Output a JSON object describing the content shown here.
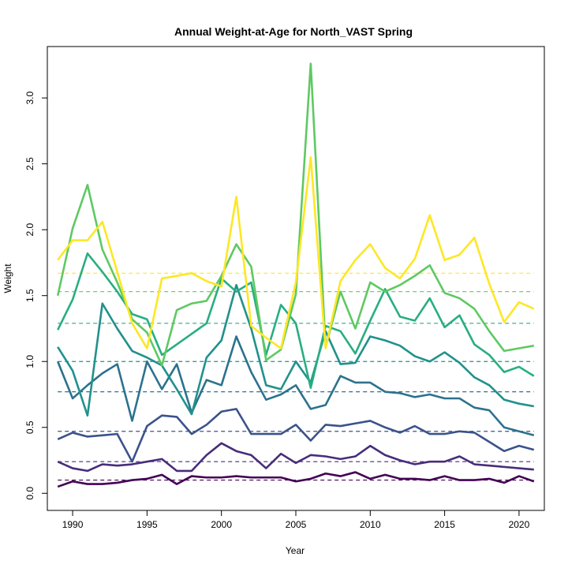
{
  "chart_data": {
    "type": "line",
    "title": "Annual Weight-at-Age for North_VAST Spring",
    "xlabel": "Year",
    "ylabel": "Weight",
    "xlim": [
      1988.3,
      2021.7
    ],
    "ylim": [
      -0.13,
      3.39
    ],
    "x_ticks": [
      1990,
      1995,
      2000,
      2005,
      2010,
      2015,
      2020
    ],
    "y_ticks": [
      0.0,
      0.5,
      1.0,
      1.5,
      2.0,
      2.5,
      3.0
    ],
    "y_tick_labels": [
      "0.0",
      "0.5",
      "1.0",
      "1.5",
      "2.0",
      "2.5",
      "3.0"
    ],
    "grid": false,
    "legend": "none",
    "x": [
      1989,
      1990,
      1991,
      1992,
      1993,
      1994,
      1995,
      1996,
      1997,
      1998,
      1999,
      2000,
      2001,
      2002,
      2003,
      2004,
      2005,
      2006,
      2007,
      2008,
      2009,
      2010,
      2011,
      2012,
      2013,
      2014,
      2015,
      2016,
      2017,
      2018,
      2019,
      2020,
      2021
    ],
    "series": [
      {
        "color": "#440154",
        "mean": 0.1,
        "values": [
          0.05,
          0.09,
          0.07,
          0.07,
          0.08,
          0.1,
          0.11,
          0.14,
          0.07,
          0.13,
          0.12,
          0.12,
          0.13,
          0.12,
          0.12,
          0.12,
          0.09,
          0.11,
          0.15,
          0.13,
          0.16,
          0.11,
          0.14,
          0.11,
          0.11,
          0.1,
          0.13,
          0.1,
          0.1,
          0.11,
          0.08,
          0.13,
          0.09
        ]
      },
      {
        "color": "#472d7b",
        "mean": 0.24,
        "values": [
          0.24,
          0.19,
          0.17,
          0.22,
          0.21,
          0.22,
          0.24,
          0.26,
          0.17,
          0.17,
          0.29,
          0.38,
          0.32,
          0.29,
          0.19,
          0.3,
          0.23,
          0.29,
          0.28,
          0.26,
          0.28,
          0.36,
          0.29,
          0.25,
          0.22,
          0.24,
          0.24,
          0.28,
          0.22,
          0.21,
          0.2,
          0.19,
          0.18
        ]
      },
      {
        "color": "#3b528b",
        "mean": 0.47,
        "values": [
          0.41,
          0.46,
          0.43,
          0.44,
          0.45,
          0.24,
          0.51,
          0.59,
          0.58,
          0.45,
          0.52,
          0.62,
          0.64,
          0.45,
          0.45,
          0.45,
          0.52,
          0.4,
          0.52,
          0.51,
          0.53,
          0.55,
          0.5,
          0.46,
          0.51,
          0.45,
          0.45,
          0.47,
          0.46,
          0.39,
          0.32,
          0.36,
          0.33
        ]
      },
      {
        "color": "#2c728e",
        "mean": 0.77,
        "values": [
          1.0,
          0.72,
          0.82,
          0.91,
          0.98,
          0.55,
          1.0,
          0.79,
          0.98,
          0.61,
          0.86,
          0.82,
          1.19,
          0.92,
          0.71,
          0.75,
          0.82,
          0.64,
          0.67,
          0.89,
          0.84,
          0.84,
          0.77,
          0.76,
          0.73,
          0.75,
          0.72,
          0.72,
          0.65,
          0.63,
          0.5,
          0.47,
          0.44
        ]
      },
      {
        "color": "#21918c",
        "mean": 1.0,
        "values": [
          1.11,
          0.93,
          0.59,
          1.44,
          1.25,
          1.08,
          1.03,
          0.97,
          0.79,
          0.6,
          1.03,
          1.16,
          1.58,
          1.25,
          0.82,
          0.79,
          1.0,
          0.84,
          1.23,
          0.98,
          0.99,
          1.19,
          1.16,
          1.12,
          1.04,
          1.0,
          1.07,
          0.99,
          0.88,
          0.82,
          0.71,
          0.68,
          0.66
        ]
      },
      {
        "color": "#28ae80",
        "mean": 1.29,
        "values": [
          1.24,
          1.47,
          1.82,
          1.68,
          1.53,
          1.36,
          1.32,
          1.05,
          1.13,
          1.21,
          1.29,
          1.63,
          1.53,
          1.6,
          1.05,
          1.43,
          1.29,
          0.8,
          1.27,
          1.23,
          1.06,
          1.31,
          1.55,
          1.34,
          1.31,
          1.48,
          1.26,
          1.35,
          1.13,
          1.05,
          0.92,
          0.96,
          0.89
        ]
      },
      {
        "color": "#5ec962",
        "mean": 1.53,
        "values": [
          1.5,
          2.01,
          2.34,
          1.85,
          1.6,
          1.32,
          1.22,
          0.97,
          1.39,
          1.44,
          1.46,
          1.65,
          1.89,
          1.72,
          1.01,
          1.09,
          1.51,
          3.26,
          1.11,
          1.53,
          1.25,
          1.6,
          1.53,
          1.58,
          1.65,
          1.73,
          1.52,
          1.48,
          1.4,
          1.23,
          1.08,
          1.1,
          1.12
        ]
      },
      {
        "color": "#fde725",
        "mean": 1.67,
        "values": [
          1.77,
          1.92,
          1.92,
          2.06,
          1.68,
          1.29,
          1.1,
          1.63,
          1.65,
          1.67,
          1.61,
          1.57,
          2.25,
          1.27,
          1.18,
          1.1,
          1.6,
          2.55,
          1.1,
          1.61,
          1.77,
          1.89,
          1.71,
          1.63,
          1.78,
          2.11,
          1.77,
          1.81,
          1.94,
          1.59,
          1.3,
          1.45,
          1.4
        ]
      }
    ]
  }
}
